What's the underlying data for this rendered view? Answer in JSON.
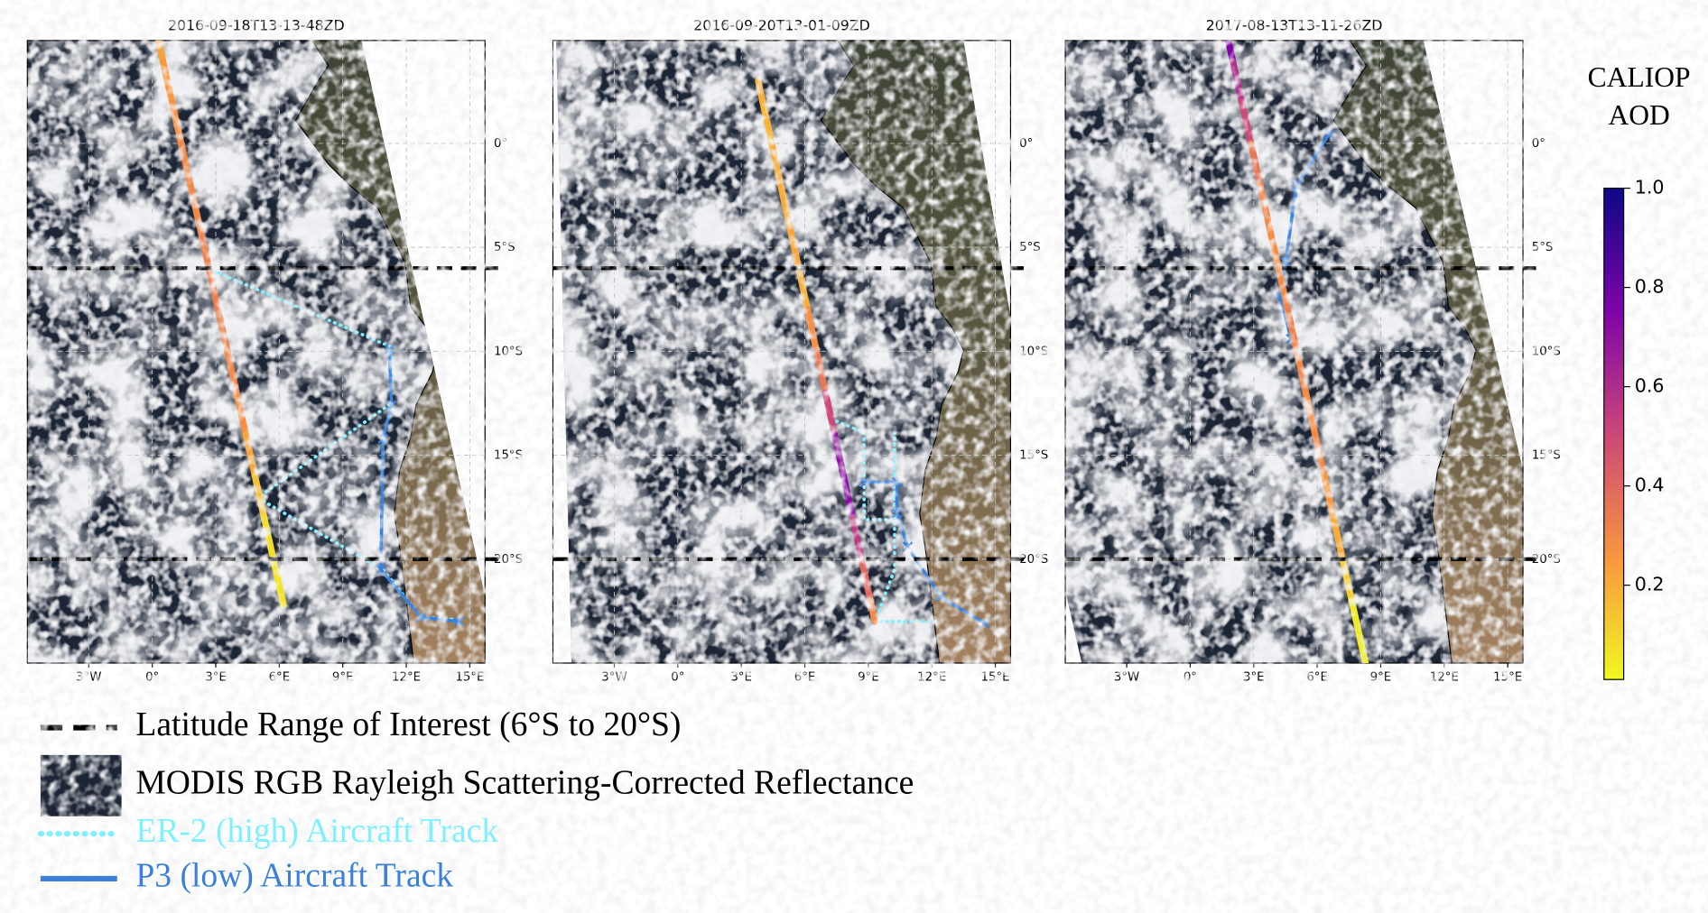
{
  "chart_data": [
    {
      "type": "map",
      "title": "2016-09-18T13-13-48ZD",
      "xlim": [
        -5.9,
        15.72
      ],
      "ylim": [
        -25,
        4.95
      ],
      "xticks": [
        {
          "value": -3,
          "label": "3°W"
        },
        {
          "value": 0,
          "label": "0°"
        },
        {
          "value": 3,
          "label": "3°E"
        },
        {
          "value": 6,
          "label": "6°E"
        },
        {
          "value": 9,
          "label": "9°E"
        },
        {
          "value": 12,
          "label": "12°E"
        },
        {
          "value": 15,
          "label": "15°E"
        }
      ],
      "yticks": [
        {
          "value": 0,
          "label": "0°"
        },
        {
          "value": -5,
          "label": "5°S"
        },
        {
          "value": -10,
          "label": "10°S"
        },
        {
          "value": -15,
          "label": "15°S"
        },
        {
          "value": -20,
          "label": "20°S"
        }
      ],
      "hlines": [
        -6,
        -20
      ],
      "caliop": {
        "lon": [
          0.3,
          0.71,
          1.15,
          1.58,
          2.02,
          2.46,
          2.89,
          3.33,
          3.76,
          4.2,
          4.63,
          5.07,
          5.5,
          5.94,
          6.2
        ],
        "lat": [
          4.9,
          3,
          1,
          -1,
          -3,
          -5,
          -7,
          -9,
          -11,
          -13,
          -15,
          -17,
          -19,
          -21,
          -22.2
        ],
        "aod": [
          0.22,
          0.25,
          0.27,
          0.3,
          0.3,
          0.32,
          0.33,
          0.32,
          0.3,
          0.28,
          0.22,
          0.15,
          0.08,
          0.06,
          0.06
        ]
      },
      "er2": {
        "lon": [
          2.6,
          11.3,
          11.3,
          4.97,
          10.9,
          12.7,
          14.3
        ],
        "lat": [
          -6,
          -9.8,
          -12.5,
          -17.05,
          -20.5,
          -22.8,
          -22.9
        ]
      },
      "p3": {
        "lon": [
          11.2,
          11.3,
          10.9,
          10.8,
          12.7,
          14.5
        ],
        "lat": [
          -9.9,
          -12.6,
          -14.2,
          -20.5,
          -22.8,
          -23
        ]
      }
    },
    {
      "type": "map",
      "title": "2016-09-20T13-01-09ZD",
      "xlim": [
        -5.9,
        15.72
      ],
      "ylim": [
        -25,
        4.95
      ],
      "xticks": [
        {
          "value": -3,
          "label": "3°W"
        },
        {
          "value": 0,
          "label": "0°"
        },
        {
          "value": 3,
          "label": "3°E"
        },
        {
          "value": 6,
          "label": "6°E"
        },
        {
          "value": 9,
          "label": "9°E"
        },
        {
          "value": 12,
          "label": "12°E"
        },
        {
          "value": 15,
          "label": "15°E"
        }
      ],
      "yticks": [
        {
          "value": 0,
          "label": "0°"
        },
        {
          "value": -5,
          "label": "5°S"
        },
        {
          "value": -10,
          "label": "10°S"
        },
        {
          "value": -15,
          "label": "15°S"
        },
        {
          "value": -20,
          "label": "20°S"
        }
      ],
      "hlines": [
        -6,
        -20
      ],
      "caliop": {
        "lon": [
          3.8,
          4.22,
          4.65,
          5.07,
          5.5,
          5.92,
          6.34,
          6.77,
          7.19,
          7.62,
          8.04,
          8.47,
          8.89,
          9.31
        ],
        "lat": [
          3,
          1,
          -1,
          -3,
          -5,
          -7,
          -9,
          -11,
          -13,
          -15,
          -17,
          -19,
          -21,
          -23
        ],
        "aod": [
          0.2,
          0.18,
          0.2,
          0.2,
          0.22,
          0.2,
          0.28,
          0.35,
          0.5,
          0.7,
          0.72,
          0.55,
          0.4,
          0.3
        ]
      },
      "er2": {
        "lon": [
          7.5,
          8.8,
          8.8,
          10.24,
          10.24,
          10.24,
          9.31,
          12.4
        ],
        "lat": [
          -13.37,
          -13.9,
          -18.1,
          -18.1,
          -13.9,
          -20.5,
          -23,
          -23
        ]
      },
      "p3": {
        "lon": [
          8.8,
          10.35,
          10.35,
          10.86,
          12.4,
          14.5
        ],
        "lat": [
          -16.3,
          -16.3,
          -17.8,
          -19.4,
          -21.8,
          -23.1
        ]
      }
    },
    {
      "type": "map",
      "title": "2017-08-13T13-11-26ZD",
      "xlim": [
        -5.9,
        15.72
      ],
      "ylim": [
        -25,
        4.95
      ],
      "xticks": [
        {
          "value": -3,
          "label": "3°W"
        },
        {
          "value": 0,
          "label": "0°"
        },
        {
          "value": 3,
          "label": "3°E"
        },
        {
          "value": 6,
          "label": "6°E"
        },
        {
          "value": 9,
          "label": "9°E"
        },
        {
          "value": 12,
          "label": "12°E"
        },
        {
          "value": 15,
          "label": "15°E"
        }
      ],
      "yticks": [
        {
          "value": 0,
          "label": "0°"
        },
        {
          "value": -5,
          "label": "5°S"
        },
        {
          "value": -10,
          "label": "10°S"
        },
        {
          "value": -15,
          "label": "15°S"
        },
        {
          "value": -20,
          "label": "20°S"
        }
      ],
      "hlines": [
        -6,
        -20
      ],
      "caliop": {
        "lon": [
          1.81,
          2.22,
          2.65,
          3.09,
          3.52,
          3.95,
          4.39,
          4.82,
          5.25,
          5.68,
          6.12,
          6.55,
          6.98,
          7.41,
          7.85,
          8.28
        ],
        "lat": [
          4.9,
          3,
          1,
          -1,
          -3,
          -5,
          -7,
          -9,
          -11,
          -13,
          -15,
          -17,
          -19,
          -21,
          -23,
          -25
        ],
        "aod": [
          0.75,
          0.6,
          0.5,
          0.35,
          0.3,
          0.28,
          0.3,
          0.32,
          0.3,
          0.28,
          0.3,
          0.25,
          0.2,
          0.12,
          0.05,
          0.04
        ]
      },
      "p3": {
        "lon": [
          6.57,
          5.02,
          4.5,
          4.24,
          4.76
        ],
        "lat": [
          0.47,
          -2.05,
          -5.7,
          -7.3,
          -9.4
        ]
      }
    }
  ],
  "er2_color": "#7ff0ff",
  "p3_color": "#3a80d8",
  "colorbar": {
    "label": [
      "CALIOP",
      "AOD"
    ],
    "clim": [
      0.01,
      1
    ],
    "colormap": "plasma_r",
    "ticks": [
      0.2,
      0.4,
      0.6,
      0.8,
      {
        "value": 1,
        "label": "1.0"
      }
    ]
  },
  "legend": [
    "Latitude Range of Interest (6°S to 20°S)",
    "MODIS RGB Rayleigh Scattering-Corrected Reflectance",
    "ER-2 (high) Aircraft Track",
    "P3 (low) Aircraft Track"
  ]
}
